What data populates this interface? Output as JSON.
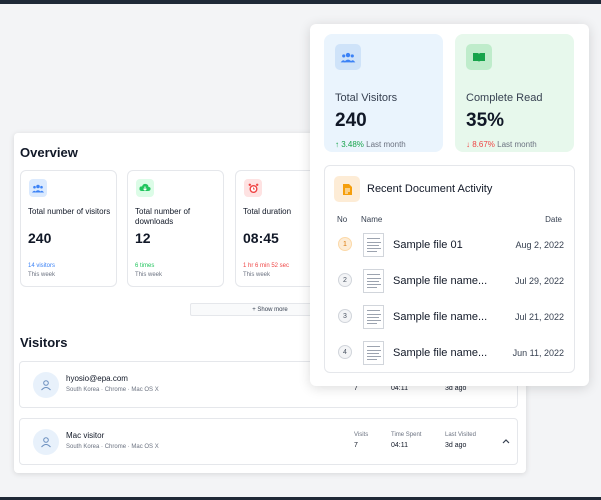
{
  "overview": {
    "title": "Overview",
    "stats": [
      {
        "label": "Total number of visitors",
        "value": "240",
        "sub": "14 visitors",
        "sub_color": "#3b82f6",
        "week": "This week",
        "icon": "users-icon",
        "icon_bg": "#dbeafe"
      },
      {
        "label": "Total number of downloads",
        "value": "12",
        "sub": "6 times",
        "sub_color": "#22c55e",
        "week": "This week",
        "icon": "cloud-download-icon",
        "icon_bg": "#dcfce7"
      },
      {
        "label": "Total duration",
        "value": "08:45",
        "sub": "1 hr 6 min 52 sec",
        "sub_color": "#ef4444",
        "week": "This week",
        "icon": "alarm-clock-icon",
        "icon_bg": "#fee2e2"
      }
    ],
    "show_more": "+ Show more"
  },
  "visitors": {
    "title": "Visitors",
    "columns": {
      "visits": "Visits",
      "time_spent": "Time Spent",
      "last_visited": "Last Visited"
    },
    "rows": [
      {
        "name": "hyosio@epa.com",
        "meta": "South Korea · Chrome · Mac OS X",
        "visits": "7",
        "time": "04:11",
        "last": "3d ago"
      },
      {
        "name": "Mac visitor",
        "meta": "South Korea · Chrome · Mac OS X",
        "visits": "7",
        "time": "04:11",
        "last": "3d ago"
      }
    ]
  },
  "front": {
    "cards": [
      {
        "label": "Total Visitors",
        "value": "240",
        "trend_arrow": "↑",
        "trend_value": "3.48%",
        "trend_color": "#16a34a",
        "trend_suffix": "Last month",
        "bg": "#eaf4fd",
        "icon_bg": "#cfe3f9",
        "icon": "users-icon"
      },
      {
        "label": "Complete Read",
        "value": "35%",
        "trend_arrow": "↓",
        "trend_value": "8.67%",
        "trend_color": "#ef4444",
        "trend_suffix": "Last month",
        "bg": "#e7f8ec",
        "icon_bg": "#bfeccb",
        "icon": "open-book-icon"
      }
    ],
    "recent": {
      "title": "Recent Document Activity",
      "icon": "document-icon",
      "headers": {
        "no": "No",
        "name": "Name",
        "date": "Date"
      },
      "rows": [
        {
          "no": "1",
          "name": "Sample file 01",
          "date": "Aug 2, 2022"
        },
        {
          "no": "2",
          "name": "Sample file name...",
          "date": "Jul 29, 2022"
        },
        {
          "no": "3",
          "name": "Sample file name...",
          "date": "Jul 21, 2022"
        },
        {
          "no": "4",
          "name": "Sample file name...",
          "date": "Jun 11, 2022"
        }
      ]
    }
  }
}
